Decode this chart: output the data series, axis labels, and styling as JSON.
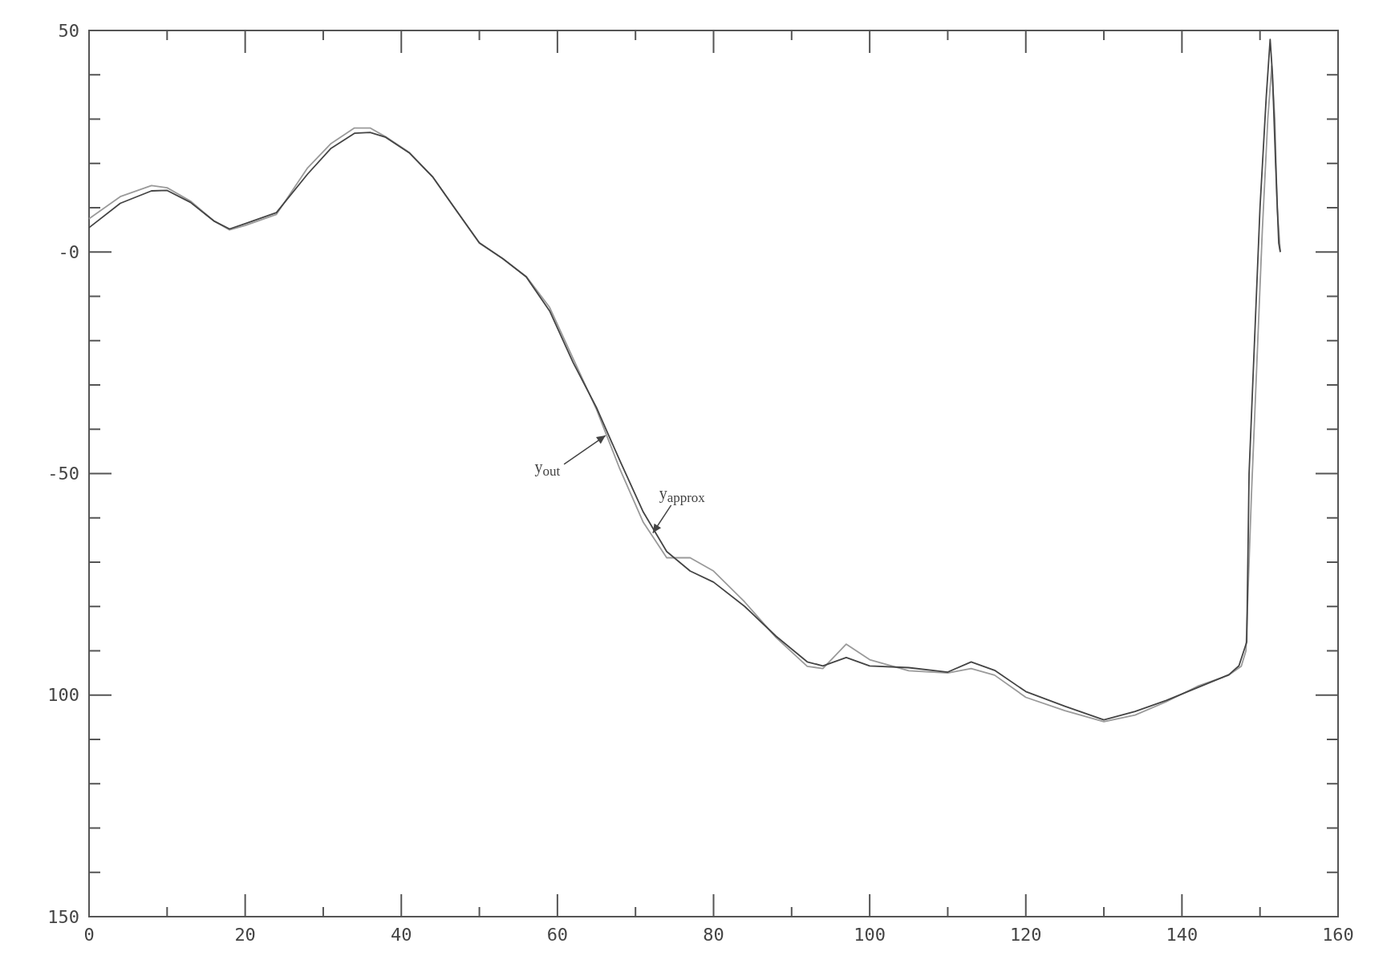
{
  "chart_data": {
    "type": "line",
    "xlim": [
      0,
      160
    ],
    "ylim": [
      -150,
      50
    ],
    "xticks": [
      0,
      {
        "value": 10,
        "label": null
      },
      20,
      {
        "value": 30,
        "label": null
      },
      40,
      {
        "value": 50,
        "label": null
      },
      60,
      {
        "value": 70,
        "label": null
      },
      80,
      {
        "value": 90,
        "label": null
      },
      100,
      {
        "value": 110,
        "label": null
      },
      120,
      {
        "value": 130,
        "label": null
      },
      140,
      {
        "value": 150,
        "label": null
      },
      160
    ],
    "yticks": [
      50,
      {
        "value": 40,
        "label": null
      },
      {
        "value": 30,
        "label": null
      },
      {
        "value": 20,
        "label": null
      },
      {
        "value": 10,
        "label": null
      },
      {
        "value": 0,
        "label": "-0"
      },
      {
        "value": -10,
        "label": null
      },
      {
        "value": -20,
        "label": null
      },
      {
        "value": -30,
        "label": null
      },
      {
        "value": -40,
        "label": null
      },
      -50,
      {
        "value": -60,
        "label": null
      },
      {
        "value": -70,
        "label": null
      },
      {
        "value": -80,
        "label": null
      },
      {
        "value": -90,
        "label": null
      },
      {
        "value": -100,
        "label": "100"
      },
      {
        "value": -110,
        "label": null
      },
      {
        "value": -120,
        "label": null
      },
      {
        "value": -130,
        "label": null
      },
      {
        "value": -140,
        "label": null
      },
      {
        "value": -150,
        "label": "150"
      }
    ],
    "grid": false,
    "marker": "none",
    "line_style": "solid",
    "series": [
      {
        "color": "#9a9a9a",
        "x": [
          0,
          4,
          8,
          10,
          13,
          16,
          18,
          20,
          24,
          28,
          31,
          34,
          36,
          38,
          41,
          44,
          47,
          50,
          53,
          56,
          59,
          62,
          65,
          68,
          71,
          74,
          77,
          80,
          84,
          88,
          92,
          94,
          97,
          100,
          105,
          110,
          113,
          116,
          120,
          125,
          130,
          134,
          138,
          142,
          146,
          147.6,
          148.2,
          148.9,
          149.6,
          150.3,
          151,
          151.5,
          151.9,
          152.2,
          152.6
        ],
        "values": [
          7.5,
          12.5,
          15,
          14.5,
          11.5,
          7,
          5,
          6,
          8.5,
          19,
          24.5,
          28,
          28,
          26,
          22.5,
          17,
          9.5,
          2,
          -1.5,
          -5.5,
          -12.5,
          -24,
          -35.5,
          -49,
          -61,
          -69,
          -69,
          -72,
          -79,
          -87,
          -93.5,
          -94,
          -88.5,
          -92,
          -94.5,
          -95,
          -94,
          -95.5,
          -100.5,
          -103.5,
          -106,
          -104.5,
          -101.5,
          -98,
          -95.5,
          -93.5,
          -90,
          -55,
          -25,
          5,
          30,
          42,
          30,
          10,
          0
        ]
      },
      {
        "color": "#444444",
        "x": [
          0,
          4,
          8,
          10,
          13,
          16,
          18,
          20,
          24,
          28,
          31,
          34,
          36,
          38,
          41,
          44,
          47,
          50,
          53,
          56,
          59,
          62,
          65,
          68,
          71,
          74,
          77,
          80,
          84,
          88,
          92,
          94,
          97,
          100,
          105,
          110,
          113,
          116,
          120,
          125,
          130,
          134,
          138,
          142,
          146,
          147.3,
          148.3,
          148.6,
          149.3,
          150,
          150.8,
          151.3,
          151.6,
          152,
          152.4,
          152.6
        ],
        "values": [
          5.5,
          11,
          13.8,
          13.9,
          11.2,
          7,
          5.2,
          6.4,
          8.9,
          17.6,
          23.4,
          26.8,
          27,
          25.9,
          22.4,
          17,
          9.5,
          2.1,
          -1.5,
          -5.6,
          -13.3,
          -24.9,
          -35.1,
          -47.1,
          -58.7,
          -67.6,
          -72,
          -74.5,
          -80,
          -86.7,
          -92.5,
          -93.4,
          -91.5,
          -93.4,
          -93.8,
          -94.8,
          -92.5,
          -94.4,
          -99.2,
          -102.5,
          -105.6,
          -103.7,
          -101.2,
          -98.3,
          -95.4,
          -93.4,
          -88,
          -50,
          -20,
          10,
          35,
          48,
          40,
          20,
          2,
          0
        ]
      }
    ],
    "annotations": [
      {
        "text": "y$_{out}$",
        "x": 66.5,
        "y": -41
      },
      {
        "text": "y$_{approx}$",
        "x": 72,
        "y": -64
      }
    ]
  }
}
